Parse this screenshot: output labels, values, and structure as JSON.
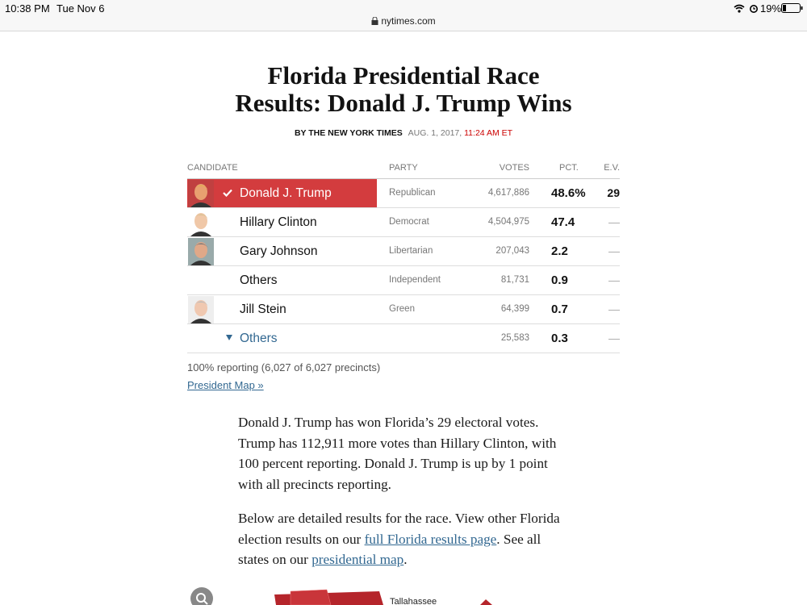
{
  "status_bar": {
    "time": "10:38 PM",
    "date": "Tue Nov 6",
    "battery": "19%"
  },
  "address_bar": {
    "url": "nytimes.com"
  },
  "article": {
    "title_lines": [
      "Florida Presidential Race",
      "Results: Donald J. Trump Wins"
    ],
    "byline": {
      "author": "BY THE NEW YORK TIMES",
      "date": "AUG. 1, 2017,",
      "time": "11:24 AM ET"
    }
  },
  "table": {
    "headers": [
      "CANDIDATE",
      "PARTY",
      "VOTES",
      "PCT.",
      "E.V."
    ],
    "rows": [
      [
        "Donald J. Trump",
        "Republican",
        "4,617,886",
        "48.6%",
        "29"
      ],
      [
        "Hillary Clinton",
        "Democrat",
        "4,504,975",
        "47.4",
        "—"
      ],
      [
        "Gary Johnson",
        "Libertarian",
        "207,043",
        "2.2",
        "—"
      ],
      [
        "Others",
        "Independent",
        "81,731",
        "0.9",
        "—"
      ],
      [
        "Jill Stein",
        "Green",
        "64,399",
        "0.7",
        "—"
      ],
      [
        "Others",
        "",
        "25,583",
        "0.3",
        "—"
      ]
    ]
  },
  "reporting": "100% reporting (6,027 of 6,027 precincts)",
  "map_link": "President Map »",
  "paragraphs": [
    [
      "Donald J. Trump has won Florida’s 29 electoral votes. Trump has 112,911 more votes than Hillary Clinton, with 100 percent reporting. Donald J. Trump is up by 1 point with all precincts reporting."
    ],
    [
      "Below are detailed results for the race. View other Florida election results on our ",
      "full Florida results page",
      ". See all states on our ",
      "presidential map",
      "."
    ]
  ],
  "map": {
    "label": "Tallahassee"
  }
}
